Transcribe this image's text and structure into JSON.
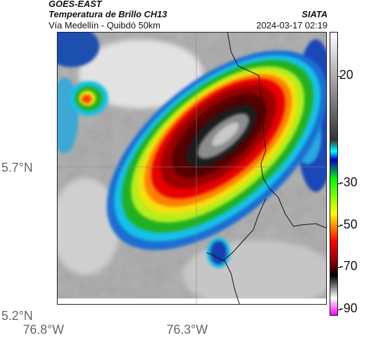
{
  "header": {
    "satellite": "GOES-EAST",
    "product": "Temperatura de Brillo CH13",
    "region": "Vía Medellín - Quibdó 50km",
    "agency": "SIATA",
    "datetime": "2024-03-17 02:19"
  },
  "axes": {
    "lat_labels": [
      "5.7°N",
      "5.2°N"
    ],
    "lon_labels": [
      "76.8°W",
      "76.3°W"
    ]
  },
  "colorbar": {
    "tick_labels": [
      "20",
      "-30",
      "-50",
      "-70",
      "-90"
    ],
    "colors": [
      "#ff00ff",
      "#ffffff",
      "#000000",
      "#7a0000",
      "#ff0000",
      "#ffff00",
      "#00ff00",
      "#0000cc",
      "#00ffff",
      "#333333",
      "#ffffff"
    ]
  }
}
